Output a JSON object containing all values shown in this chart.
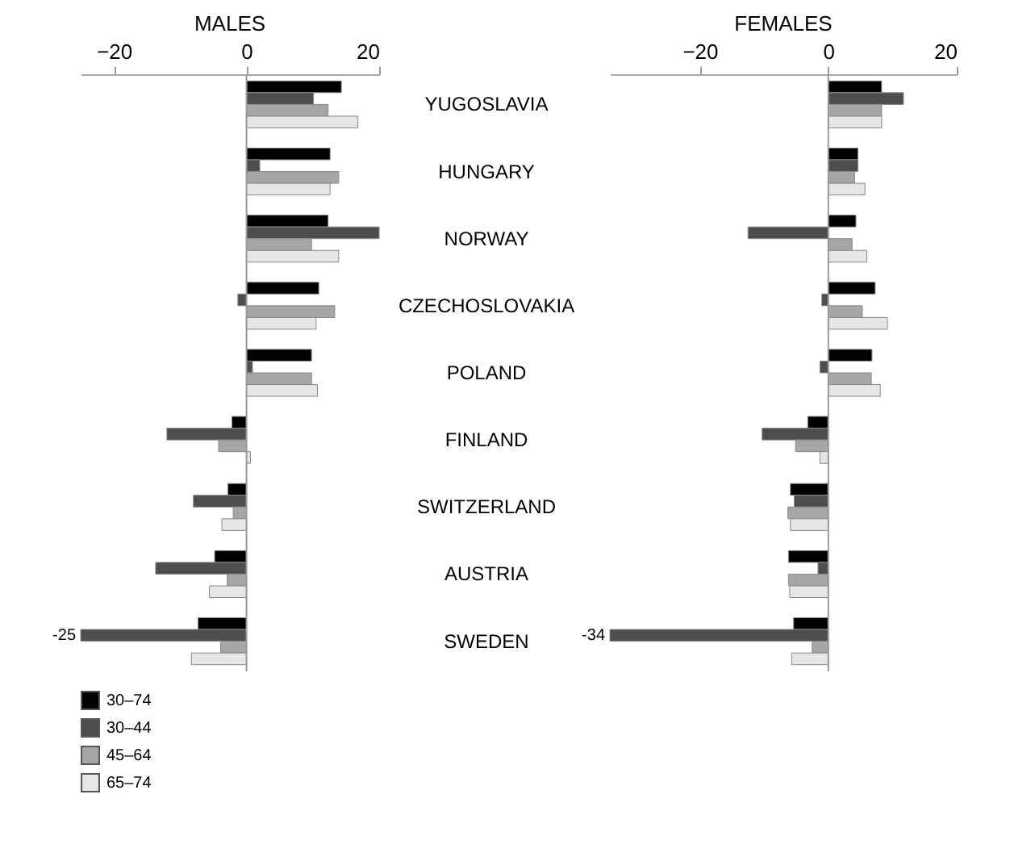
{
  "chart_data": [
    {
      "type": "bar",
      "orientation": "horizontal",
      "title": "MALES",
      "categories": [
        "YUGOSLAVIA",
        "HUNGARY",
        "NORWAY",
        "CZECHOSLOVAKIA",
        "POLAND",
        "FINLAND",
        "SWITZERLAND",
        "AUSTRIA",
        "SWEDEN"
      ],
      "xlim": [
        -25,
        20
      ],
      "xticks": [
        -20,
        0,
        20
      ],
      "legend": "bottom left",
      "ref_lines": [
        {
          "axis": "x",
          "value": 0
        }
      ],
      "series": [
        {
          "name": "30–74",
          "color": "#000000",
          "values": [
            14.3,
            12.6,
            12.3,
            10.9,
            9.8,
            -2.2,
            -2.8,
            -4.8,
            -7.3
          ]
        },
        {
          "name": "30–44",
          "color": "#4d4d4d",
          "values": [
            10.1,
            2,
            20,
            -1.3,
            0.9,
            -12,
            -8,
            -13.7,
            -25
          ],
          "value_labels": [
            null,
            null,
            null,
            null,
            null,
            null,
            null,
            null,
            "-25"
          ]
        },
        {
          "name": "45–64",
          "color": "#a6a6a6",
          "values": [
            12.3,
            13.9,
            9.8,
            13.3,
            9.8,
            -4.2,
            -2,
            -2.9,
            -3.9
          ]
        },
        {
          "name": "65–74",
          "color": "#e6e6e6",
          "values": [
            16.8,
            12.6,
            13.9,
            10.5,
            10.7,
            0.6,
            -3.7,
            -5.6,
            -8.3
          ]
        }
      ]
    },
    {
      "type": "bar",
      "orientation": "horizontal",
      "title": "FEMALES",
      "categories": [
        null,
        null,
        null,
        null,
        null,
        null,
        null,
        null,
        null
      ],
      "xlim": [
        -34,
        20
      ],
      "xticks": [
        -20,
        0,
        20
      ],
      "tick_labels": "x",
      "ref_lines": [
        {
          "axis": "x",
          "value": 0
        }
      ],
      "series": [
        {
          "name": "30–74",
          "color": "#000000",
          "values": [
            8.3,
            4.6,
            4.3,
            7.3,
            6.8,
            -3.2,
            -5.9,
            -6.2,
            -5.4
          ]
        },
        {
          "name": "30–44",
          "color": "#4d4d4d",
          "values": [
            11.7,
            4.6,
            -12.5,
            -1,
            -1.3,
            -10.3,
            -5.3,
            -1.6,
            -34
          ],
          "value_labels": [
            null,
            null,
            null,
            null,
            null,
            null,
            null,
            null,
            "-34"
          ]
        },
        {
          "name": "45–64",
          "color": "#a6a6a6",
          "values": [
            8.3,
            4.1,
            3.7,
            5.3,
            6.7,
            -5.1,
            -6.3,
            -6.2,
            -2.5
          ]
        },
        {
          "name": "65–74",
          "color": "#e6e6e6",
          "values": [
            8.3,
            5.7,
            6,
            9.2,
            8.1,
            -1.3,
            -5.9,
            -6,
            -5.7
          ]
        }
      ]
    }
  ]
}
